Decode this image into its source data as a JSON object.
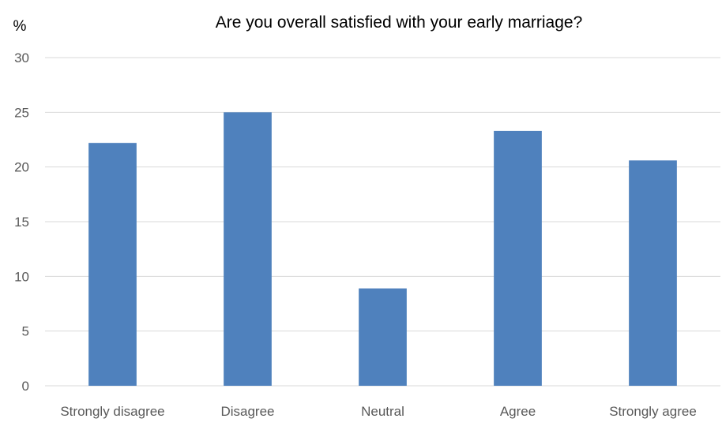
{
  "chart_data": {
    "type": "bar",
    "title": "Are you overall satisfied with your early marriage?",
    "ylabel": "%",
    "xlabel": "",
    "categories": [
      "Strongly disagree",
      "Disagree",
      "Neutral",
      "Agree",
      "Strongly agree"
    ],
    "values": [
      22.2,
      25.0,
      8.9,
      23.3,
      20.6
    ],
    "ylim": [
      0,
      30
    ],
    "yticks": [
      0,
      5,
      10,
      15,
      20,
      25,
      30
    ],
    "grid": true,
    "legend": "none",
    "bar_color": "#4f81bd"
  }
}
